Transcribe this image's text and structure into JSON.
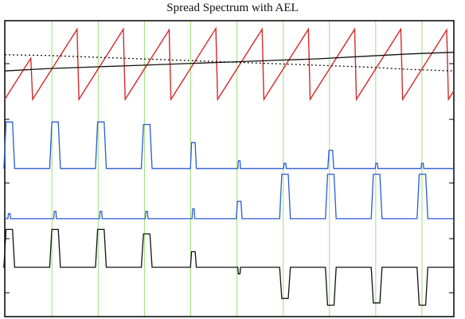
{
  "chart_data": {
    "type": "line",
    "title": "Spread Spectrum with AEL",
    "xlabel": "",
    "ylabel": "",
    "xlim": [
      0,
      100
    ],
    "grid": "vertical",
    "colors": {
      "sawtooth": "#d42a2a",
      "pulses_upper": "#2a5ad4",
      "pulses_lower": "#2a5ad4",
      "difference": "#111111",
      "grid": "#9be07a",
      "frame": "#000000"
    },
    "panels": [
      {
        "name": "",
        "ylim": [
          0,
          1
        ],
        "series": [
          {
            "name": "",
            "role": "sawtooth",
            "style": "solid",
            "color": "#d42a2a",
            "ramps": [
              {
                "x_start": 0,
                "x_end": 5.8
              },
              {
                "x_start": 6.2,
                "x_end": 16.1
              },
              {
                "x_start": 16.5,
                "x_end": 26.4
              },
              {
                "x_start": 26.8,
                "x_end": 36.6
              },
              {
                "x_start": 37.0,
                "x_end": 47.0
              },
              {
                "x_start": 47.4,
                "x_end": 57.3
              },
              {
                "x_start": 57.7,
                "x_end": 67.6
              },
              {
                "x_start": 68.0,
                "x_end": 77.9
              },
              {
                "x_start": 78.3,
                "x_end": 88.2
              },
              {
                "x_start": 88.6,
                "x_end": 98.4
              },
              {
                "x_start": 98.8,
                "x_end": 100
              }
            ],
            "low": 0.05,
            "high": 0.95
          },
          {
            "name": "",
            "role": "rising-line",
            "style": "solid",
            "color": "#111111",
            "x": [
              0,
              10,
              20,
              30,
              40,
              50,
              60,
              70,
              80,
              90,
              100
            ],
            "y": [
              0.4,
              0.43,
              0.45,
              0.47,
              0.49,
              0.51,
              0.53,
              0.55,
              0.58,
              0.61,
              0.63
            ]
          },
          {
            "name": "",
            "role": "falling-line",
            "style": "dotted",
            "color": "#111111",
            "x": [
              0,
              10,
              20,
              30,
              40,
              50,
              60,
              70,
              80,
              90,
              100
            ],
            "y": [
              0.6,
              0.59,
              0.57,
              0.55,
              0.53,
              0.51,
              0.49,
              0.47,
              0.45,
              0.42,
              0.4
            ]
          }
        ]
      },
      {
        "name": "",
        "ylim": [
          0,
          1
        ],
        "series": [
          {
            "name": "",
            "role": "pulses",
            "color": "#2a5ad4",
            "baseline": 0.05,
            "pulses": [
              {
                "x": 1.0,
                "height": 0.95
              },
              {
                "x": 11.2,
                "height": 0.95
              },
              {
                "x": 21.4,
                "height": 0.95
              },
              {
                "x": 31.6,
                "height": 0.9
              },
              {
                "x": 42.0,
                "height": 0.55
              },
              {
                "x": 52.2,
                "height": 0.2
              },
              {
                "x": 62.4,
                "height": 0.15
              },
              {
                "x": 72.6,
                "height": 0.4
              },
              {
                "x": 82.8,
                "height": 0.15
              },
              {
                "x": 93.0,
                "height": 0.15
              }
            ]
          }
        ]
      },
      {
        "name": "",
        "ylim": [
          0,
          1
        ],
        "series": [
          {
            "name": "",
            "role": "pulses",
            "color": "#2a5ad4",
            "baseline": 0.05,
            "pulses": [
              {
                "x": 1.0,
                "height": 0.15
              },
              {
                "x": 11.2,
                "height": 0.2
              },
              {
                "x": 21.4,
                "height": 0.2
              },
              {
                "x": 31.6,
                "height": 0.2
              },
              {
                "x": 42.0,
                "height": 0.25
              },
              {
                "x": 52.2,
                "height": 0.4
              },
              {
                "x": 62.4,
                "height": 0.95
              },
              {
                "x": 72.6,
                "height": 0.95
              },
              {
                "x": 82.8,
                "height": 0.95
              },
              {
                "x": 93.0,
                "height": 0.95
              }
            ]
          }
        ]
      },
      {
        "name": "",
        "ylim": [
          -1,
          1
        ],
        "series": [
          {
            "name": "",
            "role": "difference",
            "color": "#111111",
            "baseline": 0,
            "pulses": [
              {
                "x": 1.0,
                "height": 0.85
              },
              {
                "x": 11.2,
                "height": 0.85
              },
              {
                "x": 21.4,
                "height": 0.85
              },
              {
                "x": 31.6,
                "height": 0.75
              },
              {
                "x": 42.0,
                "height": 0.35
              },
              {
                "x": 52.2,
                "height": -0.15
              },
              {
                "x": 62.4,
                "height": -0.7
              },
              {
                "x": 72.6,
                "height": -0.85
              },
              {
                "x": 82.8,
                "height": -0.8
              },
              {
                "x": 93.0,
                "height": -0.85
              }
            ]
          }
        ]
      }
    ],
    "gridlines_x": [
      10.5,
      20.8,
      31.1,
      41.4,
      51.7,
      62.0,
      72.3,
      82.6,
      92.9
    ]
  }
}
